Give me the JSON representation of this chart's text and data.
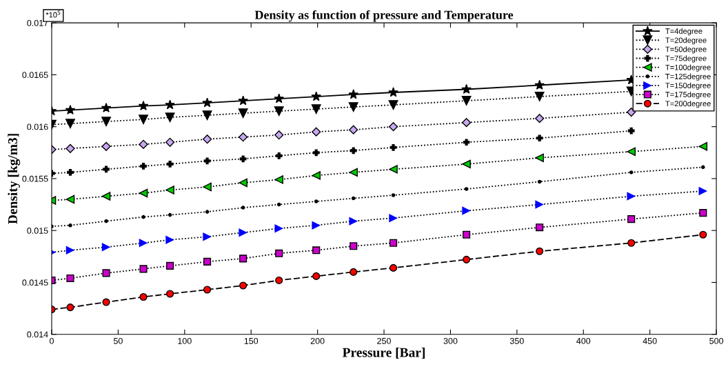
{
  "chart_data": {
    "type": "line",
    "title": "Density as function of pressure and Temperature",
    "xlabel": "Pressure [Bar]",
    "ylabel": "Density [kg/m3]",
    "annotations": [
      "*10$^{5}$"
    ],
    "x": [
      0,
      14,
      41,
      69,
      89,
      117,
      144,
      171,
      199,
      227,
      257,
      312,
      367,
      436,
      490
    ],
    "series": [
      {
        "name": "T=4degree",
        "color": "#000000",
        "marker": "star",
        "line_style": "solid",
        "values": [
          0.01615,
          0.01616,
          0.01618,
          0.0162,
          0.01621,
          0.01623,
          0.01625,
          0.01627,
          0.01629,
          0.01631,
          0.01633,
          0.01636,
          0.0164,
          0.01645,
          null
        ]
      },
      {
        "name": "T=20degree",
        "color": "#000000",
        "marker": "triangle",
        "line_style": "dotted",
        "values": [
          0.01602,
          0.01603,
          0.01605,
          0.01607,
          0.01609,
          0.01611,
          0.01613,
          0.01615,
          0.01617,
          0.01619,
          0.01621,
          0.01625,
          0.01629,
          0.01634,
          null
        ]
      },
      {
        "name": "T=50degree",
        "color": "#c8a8f0",
        "marker": "diamond",
        "line_style": "dotted",
        "values": [
          0.01578,
          0.01579,
          0.01581,
          0.01583,
          0.01585,
          0.01588,
          0.0159,
          0.01592,
          0.01595,
          0.01597,
          0.016,
          0.01604,
          0.01608,
          0.01614,
          null
        ]
      },
      {
        "name": "T=75degree",
        "color": "#000000",
        "marker": "cross",
        "line_style": "dotted",
        "values": [
          0.01555,
          0.01556,
          0.01559,
          0.01562,
          0.01564,
          0.01567,
          0.01569,
          0.01572,
          0.01575,
          0.01577,
          0.0158,
          0.01585,
          0.01589,
          0.01596,
          null
        ]
      },
      {
        "name": "T=100degree",
        "color": "#00cc00",
        "marker": "triangle_left",
        "line_style": "dotted",
        "values": [
          0.01529,
          0.0153,
          0.01533,
          0.01536,
          0.01539,
          0.01542,
          0.01546,
          0.01549,
          0.01553,
          0.01556,
          0.01559,
          0.01564,
          0.0157,
          0.01576,
          0.01581
        ]
      },
      {
        "name": "T=125degree",
        "color": "#000000",
        "marker": "point",
        "line_style": "dotted",
        "values": [
          0.01504,
          0.01505,
          0.01509,
          0.01513,
          0.01515,
          0.01518,
          0.01522,
          0.01525,
          0.01528,
          0.01531,
          0.01534,
          0.0154,
          0.01547,
          0.01556,
          0.01561
        ]
      },
      {
        "name": "T=150degree",
        "color": "#0000ff",
        "marker": "triangle_right",
        "line_style": "dotted",
        "values": [
          0.01479,
          0.01481,
          0.01484,
          0.01488,
          0.01491,
          0.01494,
          0.01498,
          0.01502,
          0.01505,
          0.01509,
          0.01512,
          0.01519,
          0.01525,
          0.01533,
          0.01538
        ]
      },
      {
        "name": "T=175degree",
        "color": "#cc00cc",
        "marker": "square",
        "line_style": "dotted",
        "values": [
          0.01452,
          0.01454,
          0.01459,
          0.01463,
          0.01466,
          0.0147,
          0.01473,
          0.01478,
          0.01481,
          0.01485,
          0.01488,
          0.01496,
          0.01503,
          0.01511,
          0.01517
        ]
      },
      {
        "name": "T=200degree",
        "color": "#ff0000",
        "marker": "circle",
        "line_style": "dashed",
        "values": [
          0.01424,
          0.01426,
          0.01431,
          0.01436,
          0.01439,
          0.01443,
          0.01447,
          0.01452,
          0.01456,
          0.0146,
          0.01464,
          0.01472,
          0.0148,
          0.01488,
          0.01496
        ]
      }
    ],
    "xlim": [
      0,
      500
    ],
    "xticks": [
      0,
      50,
      100,
      150,
      200,
      250,
      300,
      350,
      400,
      450,
      500
    ],
    "ylim": [
      0.014,
      0.017
    ],
    "yticks": [
      0.014,
      0.0145,
      0.015,
      0.0155,
      0.016,
      0.0165,
      0.017
    ],
    "grid": false,
    "legend": "top right"
  }
}
